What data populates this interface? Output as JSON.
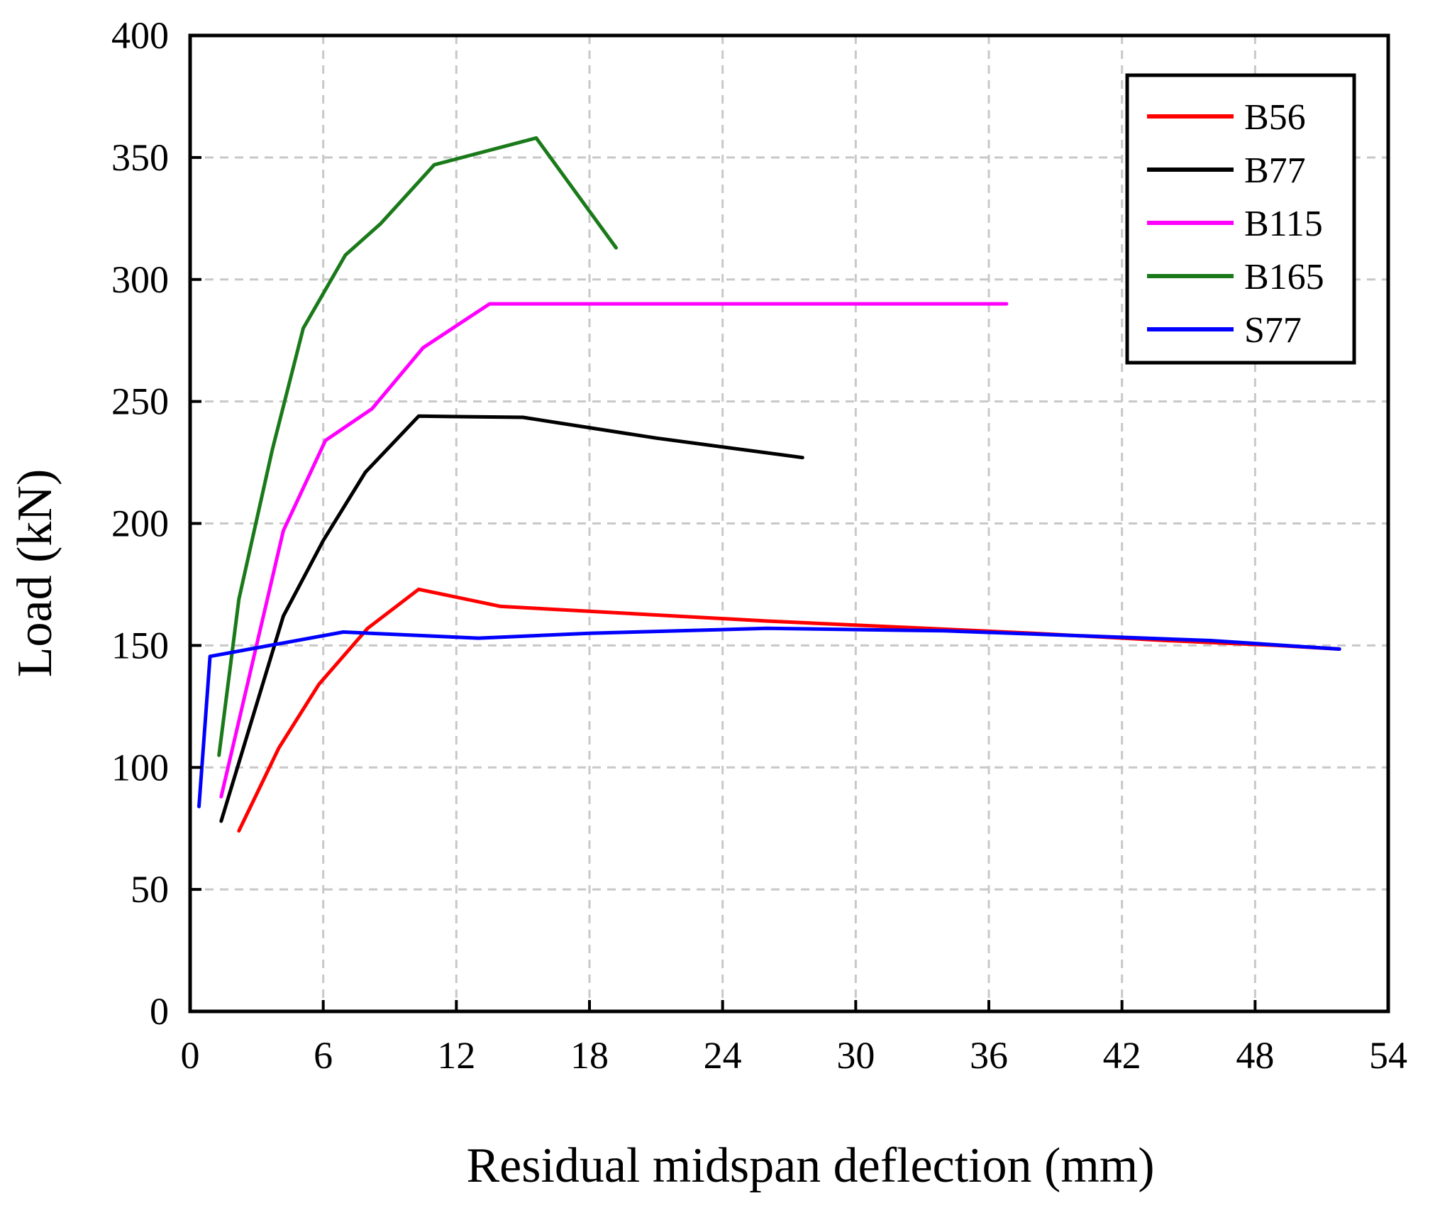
{
  "chart_data": {
    "type": "line",
    "title": "",
    "xlabel": "Residual midspan deflection (mm)",
    "ylabel": "Load (kN)",
    "xlim": [
      0,
      54
    ],
    "ylim": [
      0,
      400
    ],
    "xticks": [
      0,
      6,
      12,
      18,
      24,
      30,
      36,
      42,
      48,
      54
    ],
    "yticks": [
      0,
      50,
      100,
      150,
      200,
      250,
      300,
      350,
      400
    ],
    "grid": true,
    "legend_position": "top-right",
    "series": [
      {
        "name": "B56",
        "color": "#ff0000",
        "points": [
          [
            2.2,
            74
          ],
          [
            4.0,
            108
          ],
          [
            5.8,
            134
          ],
          [
            8.0,
            157
          ],
          [
            10.3,
            173
          ],
          [
            14.0,
            166
          ],
          [
            20,
            163
          ],
          [
            26,
            160
          ],
          [
            32,
            157.5
          ],
          [
            38,
            155
          ],
          [
            44,
            152
          ],
          [
            49,
            150
          ],
          [
            51.8,
            148.5
          ]
        ]
      },
      {
        "name": "B77",
        "color": "#000000",
        "points": [
          [
            1.4,
            78
          ],
          [
            4.2,
            162
          ],
          [
            6.0,
            193
          ],
          [
            7.9,
            221
          ],
          [
            10.3,
            244
          ],
          [
            15.0,
            243.5
          ],
          [
            21,
            235
          ],
          [
            27.6,
            227
          ]
        ]
      },
      {
        "name": "B115",
        "color": "#ff00ff",
        "points": [
          [
            1.4,
            88
          ],
          [
            4.2,
            197
          ],
          [
            6.1,
            234
          ],
          [
            8.2,
            247
          ],
          [
            10.5,
            272
          ],
          [
            13.5,
            290
          ],
          [
            36.8,
            290
          ]
        ]
      },
      {
        "name": "B165",
        "color": "#1a7a1a",
        "points": [
          [
            1.3,
            105
          ],
          [
            2.2,
            169
          ],
          [
            3.7,
            230
          ],
          [
            5.1,
            280
          ],
          [
            7.0,
            310
          ],
          [
            8.6,
            323
          ],
          [
            11.0,
            347
          ],
          [
            15.6,
            358
          ],
          [
            19.2,
            313
          ]
        ]
      },
      {
        "name": "S77",
        "color": "#0000ff",
        "points": [
          [
            0.4,
            84
          ],
          [
            0.9,
            145.5
          ],
          [
            4.2,
            151
          ],
          [
            6.9,
            155.5
          ],
          [
            13.0,
            153
          ],
          [
            18,
            155
          ],
          [
            26,
            157
          ],
          [
            34,
            156
          ],
          [
            40,
            154
          ],
          [
            46,
            152
          ],
          [
            51.8,
            148.5
          ]
        ]
      }
    ]
  }
}
